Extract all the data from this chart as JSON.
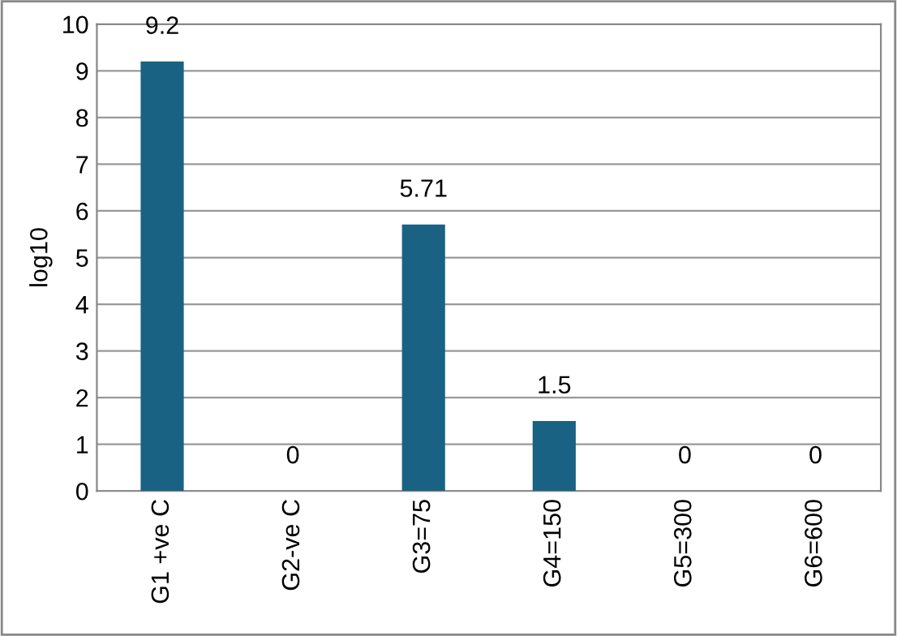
{
  "chart_data": {
    "type": "bar",
    "ylabel": "log10",
    "categories": [
      "G1 +ve C",
      "G2-ve C",
      "G3=75",
      "G4=150",
      "G5=300",
      "G6=600"
    ],
    "values": [
      9.2,
      0,
      5.71,
      1.5,
      0,
      0
    ],
    "color": "#1a6283",
    "ylim": [
      0,
      10
    ],
    "yticks": [
      0,
      1,
      2,
      3,
      4,
      5,
      6,
      7,
      8,
      9,
      10
    ],
    "grid": "y",
    "data_labels": true
  }
}
